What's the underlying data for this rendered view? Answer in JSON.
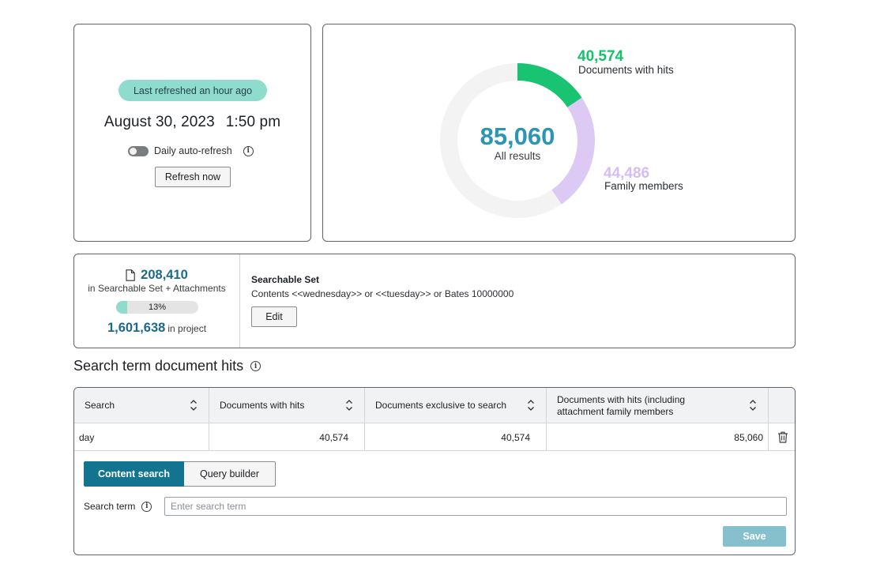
{
  "refresh": {
    "pill": "Last refreshed an hour ago",
    "date": "August 30, 2023",
    "time": "1:50 pm",
    "auto_refresh_label": "Daily auto-refresh",
    "auto_refresh_on": false,
    "button": "Refresh now"
  },
  "chart_data": {
    "type": "pie",
    "total": "85,060",
    "total_label": "All results",
    "slices": [
      {
        "name": "Documents with hits",
        "label": "40,574",
        "value": 40574,
        "color": "#18c472"
      },
      {
        "name": "Family members",
        "label": "44,486",
        "value": 44486,
        "color": "#dccaf4"
      }
    ],
    "track_color": "#f3f3f3"
  },
  "set": {
    "count": "208,410",
    "count_sub": "in Searchable Set + Attachments",
    "percent_label": "13%",
    "percent": 13,
    "project_count": "1,601,638",
    "project_sub": "in project",
    "title": "Searchable Set",
    "query": "Contents <<wednesday>> or <<tuesday>> or Bates 10000000",
    "edit_button": "Edit"
  },
  "section_title": "Search term document hits",
  "table": {
    "columns": [
      "Search",
      "Documents with hits",
      "Documents exclusive to search",
      "Documents with hits (including attachment family members"
    ],
    "rows": [
      {
        "search": "day",
        "hits": "40,574",
        "exclusive": "40,574",
        "with_family": "85,060"
      }
    ]
  },
  "form": {
    "tabs": [
      "Content search",
      "Query builder"
    ],
    "active_tab": 0,
    "term_label": "Search term",
    "term_placeholder": "Enter search term",
    "term_value": "",
    "save_button": "Save"
  },
  "colors": {
    "accent": "#12748f",
    "teal_text": "#1b6b86",
    "pill": "#8fdccf",
    "save_disabled": "#86c0cd"
  }
}
